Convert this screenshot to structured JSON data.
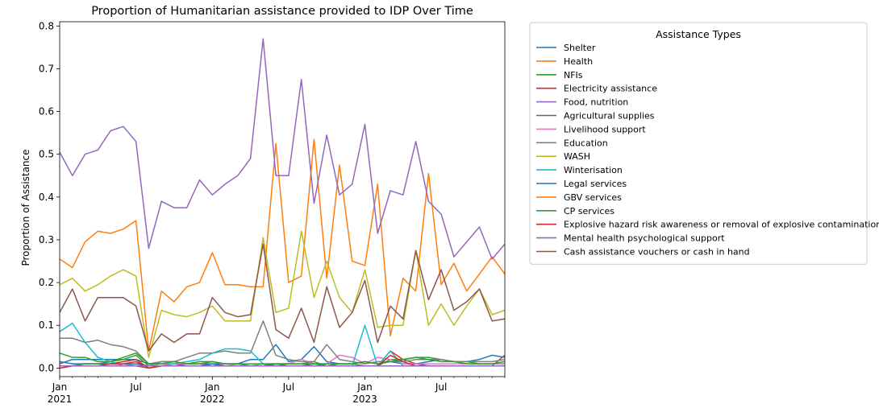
{
  "chart_data": {
    "type": "line",
    "title": "Proportion of Humanitarian assistance provided to IDP Over Time",
    "xlabel": "",
    "ylabel": "Proportion of Assistance",
    "ylim": [
      -0.02,
      0.81
    ],
    "y_ticks": [
      "0.0",
      "0.1",
      "0.2",
      "0.3",
      "0.4",
      "0.5",
      "0.6",
      "0.7",
      "0.8"
    ],
    "x_tick_labels": [
      {
        "month": 0,
        "label": "Jan",
        "year": "2021"
      },
      {
        "month": 6,
        "label": "Jul",
        "year": ""
      },
      {
        "month": 12,
        "label": "Jan",
        "year": "2022"
      },
      {
        "month": 18,
        "label": "Jul",
        "year": ""
      },
      {
        "month": 24,
        "label": "Jan",
        "year": "2023"
      },
      {
        "month": 30,
        "label": "Jul",
        "year": ""
      }
    ],
    "x": [
      "2021-01",
      "2021-02",
      "2021-03",
      "2021-04",
      "2021-05",
      "2021-06",
      "2021-07",
      "2021-08",
      "2021-09",
      "2021-10",
      "2021-11",
      "2021-12",
      "2022-01",
      "2022-02",
      "2022-03",
      "2022-04",
      "2022-05",
      "2022-06",
      "2022-07",
      "2022-08",
      "2022-09",
      "2022-10",
      "2022-11",
      "2022-12",
      "2023-01",
      "2023-02",
      "2023-03",
      "2023-04",
      "2023-05",
      "2023-06",
      "2023-07",
      "2023-08",
      "2023-09",
      "2023-10",
      "2023-11",
      "2023-12"
    ],
    "legend_title": "Assistance Types",
    "legend_position": "outside-right",
    "grid": false,
    "series": [
      {
        "name": "Shelter",
        "color": "#1f77b4",
        "values": [
          0.01,
          0.02,
          0.02,
          0.02,
          0.02,
          0.02,
          0.02,
          0.01,
          0.01,
          0.01,
          0.01,
          0.01,
          0.01,
          0.01,
          0.01,
          0.02,
          0.02,
          0.055,
          0.015,
          0.02,
          0.05,
          0.015,
          0.01,
          0.01,
          0.015,
          0.01,
          0.015,
          0.01,
          0.01,
          0.015,
          0.02,
          0.015,
          0.015,
          0.02,
          0.03,
          0.025
        ]
      },
      {
        "name": "Health",
        "color": "#ff7f0e",
        "values": [
          0.255,
          0.235,
          0.295,
          0.32,
          0.315,
          0.325,
          0.345,
          0.04,
          0.18,
          0.155,
          0.19,
          0.2,
          0.27,
          0.195,
          0.195,
          0.19,
          0.19,
          0.525,
          0.2,
          0.215,
          0.535,
          0.21,
          0.475,
          0.25,
          0.24,
          0.43,
          0.075,
          0.21,
          0.18,
          0.455,
          0.195,
          0.245,
          0.18,
          0.22,
          0.26,
          0.22
        ]
      },
      {
        "name": "NFIs",
        "color": "#2ca02c",
        "values": [
          0.035,
          0.025,
          0.025,
          0.015,
          0.015,
          0.02,
          0.03,
          0.005,
          0.015,
          0.015,
          0.01,
          0.015,
          0.015,
          0.01,
          0.01,
          0.005,
          0.005,
          0.01,
          0.01,
          0.01,
          0.015,
          0.005,
          0.01,
          0.01,
          0.005,
          0.005,
          0.02,
          0.02,
          0.025,
          0.025,
          0.02,
          0.015,
          0.015,
          0.01,
          0.01,
          0.01
        ]
      },
      {
        "name": "Electricity assistance",
        "color": "#d62728",
        "values": [
          0.005,
          0.005,
          0.01,
          0.01,
          0.01,
          0.015,
          0.02,
          0.0,
          0.005,
          0.01,
          0.005,
          0.005,
          0.005,
          0.005,
          0.005,
          0.005,
          0.005,
          0.005,
          0.005,
          0.005,
          0.005,
          0.005,
          0.005,
          0.005,
          0.005,
          0.005,
          0.04,
          0.02,
          0.01,
          0.005,
          0.005,
          0.005,
          0.005,
          0.005,
          0.005,
          0.005
        ]
      },
      {
        "name": "Food, nutrition",
        "color": "#9467bd",
        "values": [
          0.505,
          0.45,
          0.5,
          0.51,
          0.555,
          0.565,
          0.53,
          0.28,
          0.39,
          0.375,
          0.375,
          0.44,
          0.405,
          0.43,
          0.45,
          0.49,
          0.77,
          0.45,
          0.45,
          0.675,
          0.385,
          0.545,
          0.405,
          0.43,
          0.57,
          0.315,
          0.415,
          0.405,
          0.53,
          0.39,
          0.36,
          0.26,
          0.295,
          0.33,
          0.255,
          0.29
        ]
      },
      {
        "name": "Agricultural supplies",
        "color": "#8c564b",
        "values": [
          0.005,
          0.005,
          0.005,
          0.005,
          0.005,
          0.005,
          0.005,
          0.0,
          0.005,
          0.005,
          0.005,
          0.005,
          0.005,
          0.005,
          0.005,
          0.005,
          0.005,
          0.005,
          0.005,
          0.005,
          0.005,
          0.005,
          0.005,
          0.005,
          0.005,
          0.005,
          0.005,
          0.005,
          0.005,
          0.005,
          0.005,
          0.005,
          0.005,
          0.005,
          0.005,
          0.03
        ]
      },
      {
        "name": "Livelihood support",
        "color": "#e377c2",
        "values": [
          0.005,
          0.005,
          0.005,
          0.005,
          0.005,
          0.005,
          0.01,
          0.005,
          0.01,
          0.01,
          0.01,
          0.01,
          0.005,
          0.01,
          0.005,
          0.005,
          0.01,
          0.01,
          0.01,
          0.02,
          0.01,
          0.01,
          0.03,
          0.025,
          0.01,
          0.025,
          0.02,
          0.01,
          0.01,
          0.01,
          0.01,
          0.01,
          0.01,
          0.01,
          0.01,
          0.01
        ]
      },
      {
        "name": "Education",
        "color": "#7f7f7f",
        "values": [
          0.07,
          0.07,
          0.06,
          0.065,
          0.055,
          0.05,
          0.04,
          0.01,
          0.015,
          0.015,
          0.025,
          0.035,
          0.035,
          0.04,
          0.035,
          0.035,
          0.11,
          0.03,
          0.02,
          0.015,
          0.015,
          0.055,
          0.02,
          0.015,
          0.01,
          0.015,
          0.015,
          0.015,
          0.02,
          0.02,
          0.02,
          0.015,
          0.015,
          0.015,
          0.015,
          0.02
        ]
      },
      {
        "name": "WASH",
        "color": "#bcbd22",
        "values": [
          0.195,
          0.21,
          0.18,
          0.195,
          0.215,
          0.23,
          0.215,
          0.025,
          0.135,
          0.125,
          0.12,
          0.13,
          0.145,
          0.11,
          0.11,
          0.11,
          0.305,
          0.13,
          0.14,
          0.32,
          0.165,
          0.25,
          0.165,
          0.13,
          0.23,
          0.095,
          0.1,
          0.1,
          0.275,
          0.1,
          0.15,
          0.1,
          0.145,
          0.185,
          0.125,
          0.135
        ]
      },
      {
        "name": "Winterisation",
        "color": "#17becf",
        "values": [
          0.085,
          0.105,
          0.06,
          0.025,
          0.015,
          0.005,
          0.01,
          0.005,
          0.005,
          0.01,
          0.015,
          0.02,
          0.035,
          0.045,
          0.045,
          0.04,
          0.01,
          0.005,
          0.005,
          0.005,
          0.005,
          0.005,
          0.005,
          0.005,
          0.1,
          0.005,
          0.04,
          0.005,
          0.005,
          0.005,
          0.005,
          0.005,
          0.005,
          0.005,
          0.005,
          0.005
        ]
      },
      {
        "name": "Legal services",
        "color": "#1f77b4",
        "values": [
          0.015,
          0.01,
          0.01,
          0.01,
          0.01,
          0.01,
          0.01,
          0.005,
          0.005,
          0.005,
          0.005,
          0.005,
          0.01,
          0.005,
          0.005,
          0.005,
          0.005,
          0.01,
          0.005,
          0.005,
          0.01,
          0.005,
          0.005,
          0.005,
          0.005,
          0.005,
          0.005,
          0.005,
          0.005,
          0.005,
          0.005,
          0.005,
          0.005,
          0.005,
          0.005,
          0.005
        ]
      },
      {
        "name": "GBV services",
        "color": "#ff7f0e",
        "values": [
          0.005,
          0.005,
          0.005,
          0.005,
          0.005,
          0.005,
          0.005,
          0.005,
          0.005,
          0.005,
          0.005,
          0.005,
          0.005,
          0.005,
          0.005,
          0.005,
          0.005,
          0.005,
          0.005,
          0.005,
          0.005,
          0.005,
          0.005,
          0.005,
          0.005,
          0.005,
          0.005,
          0.005,
          0.005,
          0.005,
          0.005,
          0.005,
          0.005,
          0.005,
          0.005,
          0.005
        ]
      },
      {
        "name": "CP services",
        "color": "#2ca02c",
        "values": [
          0.005,
          0.005,
          0.01,
          0.01,
          0.015,
          0.025,
          0.035,
          0.01,
          0.01,
          0.015,
          0.01,
          0.01,
          0.015,
          0.01,
          0.01,
          0.01,
          0.01,
          0.01,
          0.01,
          0.01,
          0.01,
          0.01,
          0.01,
          0.01,
          0.015,
          0.01,
          0.015,
          0.02,
          0.025,
          0.02,
          0.015,
          0.015,
          0.01,
          0.01,
          0.01,
          0.015
        ]
      },
      {
        "name": "Explosive hazard risk awareness or removal of explosive contamination",
        "color": "#d62728",
        "values": [
          0.0,
          0.005,
          0.005,
          0.005,
          0.01,
          0.01,
          0.015,
          0.0,
          0.005,
          0.005,
          0.005,
          0.005,
          0.005,
          0.005,
          0.005,
          0.005,
          0.005,
          0.005,
          0.005,
          0.005,
          0.005,
          0.005,
          0.005,
          0.005,
          0.005,
          0.005,
          0.03,
          0.015,
          0.005,
          0.005,
          0.005,
          0.005,
          0.005,
          0.005,
          0.005,
          0.005
        ]
      },
      {
        "name": "Mental health psychological support",
        "color": "#9467bd",
        "values": [
          0.005,
          0.005,
          0.005,
          0.005,
          0.005,
          0.005,
          0.005,
          0.005,
          0.005,
          0.005,
          0.005,
          0.005,
          0.005,
          0.005,
          0.005,
          0.005,
          0.005,
          0.005,
          0.005,
          0.005,
          0.005,
          0.005,
          0.005,
          0.005,
          0.005,
          0.005,
          0.005,
          0.005,
          0.005,
          0.005,
          0.005,
          0.005,
          0.005,
          0.005,
          0.005,
          0.005
        ]
      },
      {
        "name": "Cash assistance vouchers or cash in hand",
        "color": "#8c564b",
        "values": [
          0.13,
          0.185,
          0.11,
          0.165,
          0.165,
          0.165,
          0.145,
          0.04,
          0.08,
          0.06,
          0.08,
          0.08,
          0.165,
          0.13,
          0.12,
          0.125,
          0.29,
          0.09,
          0.07,
          0.14,
          0.06,
          0.19,
          0.095,
          0.13,
          0.205,
          0.06,
          0.145,
          0.115,
          0.275,
          0.16,
          0.23,
          0.135,
          0.155,
          0.185,
          0.11,
          0.115
        ]
      }
    ]
  }
}
